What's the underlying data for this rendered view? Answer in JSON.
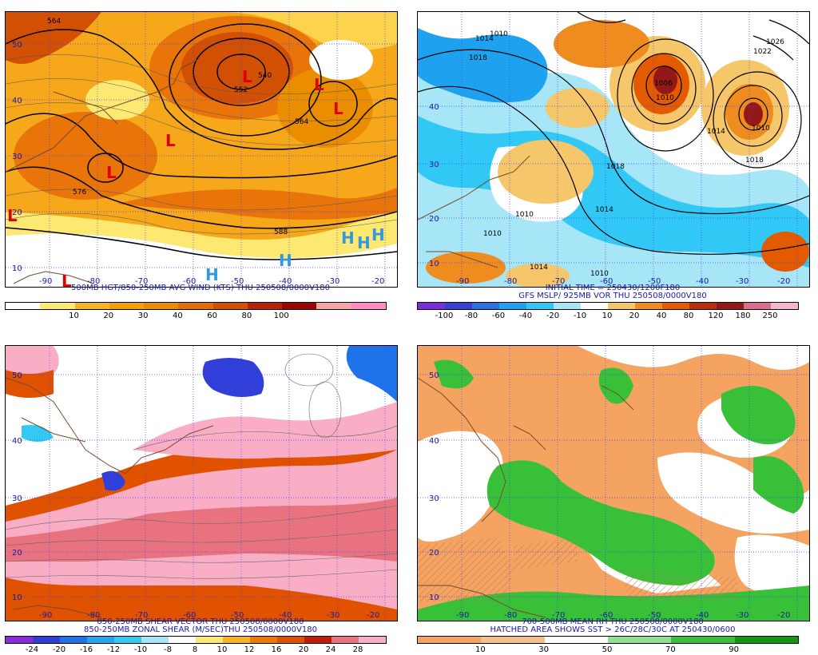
{
  "panels": [
    {
      "id": "wind",
      "captions": [
        "500MB HGT/850-250MB AVG WIND (KTS) THU 250508/0000V180"
      ],
      "colorbar": {
        "colors": [
          "#ffffff",
          "#fde872",
          "#f8b321",
          "#f3a100",
          "#ea8e00",
          "#e26e08",
          "#d25004",
          "#b82204",
          "#9c0404",
          "#f4a6a6",
          "#ff8bc0"
        ],
        "labels": [
          "10",
          "20",
          "30",
          "40",
          "60",
          "80",
          "100"
        ]
      },
      "lat_labels": [
        "10",
        "20",
        "30",
        "40",
        "50"
      ],
      "lon_labels": [
        "-90",
        "-80",
        "-70",
        "-60",
        "-50",
        "-40",
        "-30",
        "-20"
      ],
      "contour_labels": [
        "564",
        "552",
        "540",
        "564",
        "576",
        "588"
      ],
      "systems": [
        "L",
        "L",
        "L",
        "L",
        "L",
        "L",
        "L",
        "H",
        "H",
        "H",
        "H",
        "H"
      ]
    },
    {
      "id": "vorticity",
      "captions": [
        "INITIAL TIME = 250430/1200F180",
        "GFS MSLP/ 925MB VOR THU 250508/0000V180"
      ],
      "colorbar": {
        "colors": [
          "#7c2ddb",
          "#3a3fd6",
          "#2d6fe0",
          "#1ea1ee",
          "#31c8f5",
          "#a6e6f7",
          "#ffffff",
          "#f6c66a",
          "#ef8c1f",
          "#e35a00",
          "#b92d0a",
          "#941818",
          "#d96d8b",
          "#f7b6d0"
        ],
        "labels": [
          "-100",
          "-80",
          "-60",
          "-40",
          "-20",
          "-10",
          "10",
          "20",
          "40",
          "80",
          "120",
          "180",
          "250"
        ]
      },
      "lat_labels": [
        "10",
        "20",
        "30",
        "40"
      ],
      "lon_labels": [
        "-90",
        "-80",
        "-70",
        "-60",
        "-50",
        "-40",
        "-30",
        "-20"
      ],
      "contour_labels": [
        "1014",
        "1018",
        "1010",
        "1022",
        "1026",
        "1006",
        "1010",
        "1014",
        "1018",
        "1010",
        "1018",
        "1014",
        "1010",
        "1010",
        "1014",
        "1010"
      ]
    },
    {
      "id": "shear",
      "captions": [
        "850-250MB SHEAR VECTOR THU 250508/0000V180",
        "850-250MB ZONAL SHEAR (M/SEC)THU 250508/0000V180"
      ],
      "colorbar": {
        "colors": [
          "#8a2be2",
          "#2f3fd8",
          "#1e73e8",
          "#23a7f0",
          "#33c9f2",
          "#a6e6f7",
          "#ffffff",
          "#fde872",
          "#f8b321",
          "#f07a00",
          "#e05200",
          "#c21c08",
          "#e8737f",
          "#f9aec6"
        ],
        "labels": [
          "-24",
          "-20",
          "-16",
          "-12",
          "-10",
          "-8",
          "8",
          "10",
          "12",
          "16",
          "20",
          "24",
          "28"
        ]
      },
      "lat_labels": [
        "10",
        "20",
        "30",
        "40",
        "50"
      ],
      "lon_labels": [
        "-90",
        "-80",
        "-70",
        "-60",
        "-50",
        "-40",
        "-30",
        "-20"
      ]
    },
    {
      "id": "rh",
      "captions": [
        "700-500MB MEAN RH THU 250508/0000V180",
        "HATCHED AREA SHOWS SST > 26C/28C/30C AT 250430/0600"
      ],
      "colorbar": {
        "colors": [
          "#f4a460",
          "#f6c08a",
          "#ffffff",
          "#8fe08f",
          "#38c038",
          "#109810"
        ],
        "labels": [
          "10",
          "30",
          "50",
          "70",
          "90"
        ]
      },
      "lat_labels": [
        "10",
        "20",
        "30",
        "40",
        "50"
      ],
      "lon_labels": [
        "-90",
        "-80",
        "-70",
        "-60",
        "-50",
        "-40",
        "-30",
        "-20"
      ]
    }
  ]
}
